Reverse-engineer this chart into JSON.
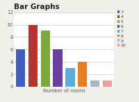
{
  "title": "Bar Graphs",
  "xlabel": "Number of rooms",
  "categories": [
    "3",
    "4",
    "5",
    "6",
    "7",
    "8",
    "9",
    "10"
  ],
  "values": [
    6,
    10,
    9,
    6,
    3,
    4,
    1,
    1
  ],
  "colors": [
    "#3f5cbf",
    "#b83232",
    "#7aaa3a",
    "#6a3fa3",
    "#5bafd6",
    "#e67e22",
    "#aab4c8",
    "#e8a0a0"
  ],
  "legend_labels": [
    "3",
    "4",
    "5",
    "6",
    "7",
    "8",
    "9",
    "10"
  ],
  "ylim": [
    0,
    12
  ],
  "yticks": [
    0,
    2,
    4,
    6,
    8,
    10,
    12
  ],
  "title_fontsize": 7.5,
  "label_fontsize": 5,
  "tick_fontsize": 5,
  "legend_fontsize": 4.5,
  "background_color": "#f0f0eb",
  "plot_bg_color": "#ffffff"
}
